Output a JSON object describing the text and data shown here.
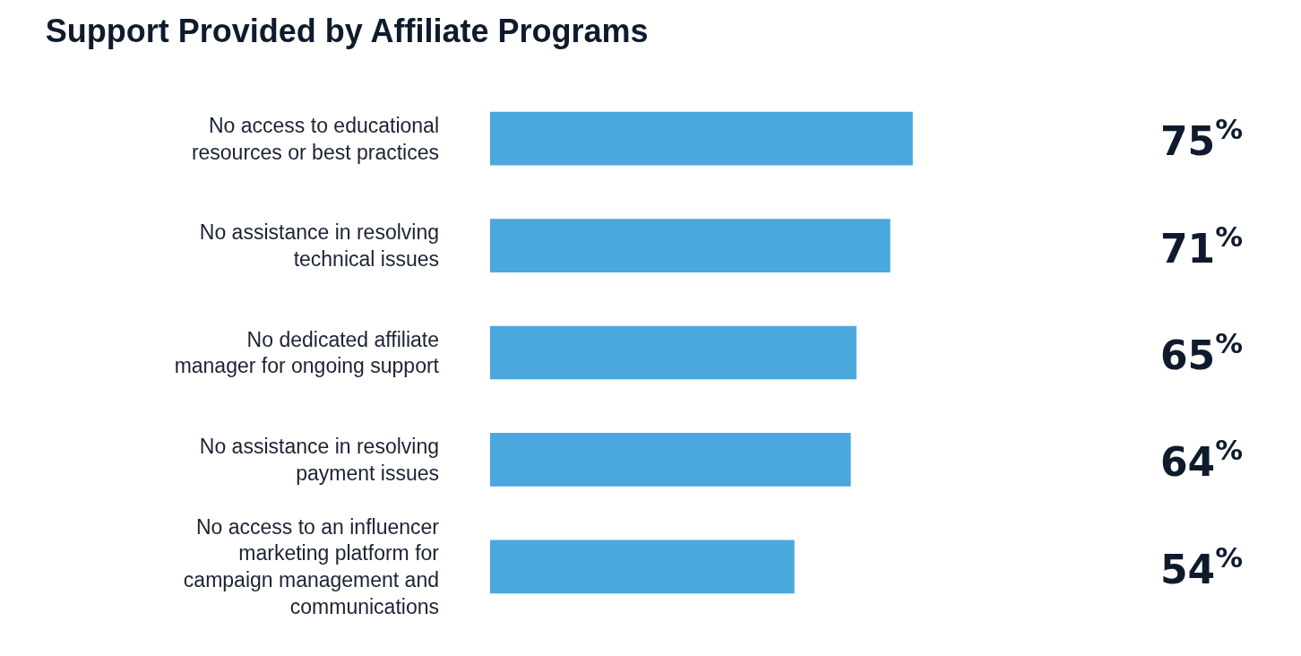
{
  "chart_data": {
    "type": "bar",
    "orientation": "horizontal",
    "title": "Support Provided by Affiliate Programs",
    "categories": [
      "No access to educational resources or best practices",
      "No assistance in resolving technical issues",
      "No dedicated affiliate manager for ongoing support",
      "No assistance in resolving payment issues",
      "No access to an influencer marketing platform for campaign management and communications"
    ],
    "values": [
      75,
      71,
      65,
      64,
      54
    ],
    "value_labels": [
      "75$^{%}$",
      "71$^{%}$",
      "65$^{%}$",
      "64$^{%}$",
      "54$^{%}$"
    ],
    "color": "#4aa8de"
  }
}
